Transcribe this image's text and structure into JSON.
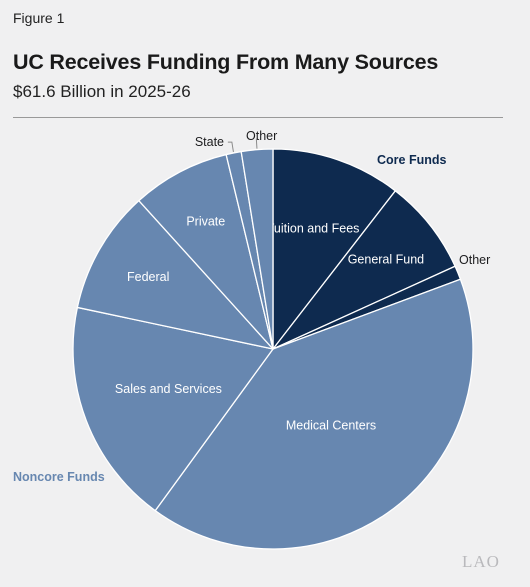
{
  "figure_label": "Figure 1",
  "chart_data": {
    "type": "pie",
    "title": "UC Receives Funding From Many Sources",
    "subtitle": "$61.6 Billion in 2025-26",
    "slices": [
      {
        "label": "Tuition and Fees",
        "value": 10.3,
        "group": "Core Funds"
      },
      {
        "label": "General Fund",
        "value": 7.6,
        "group": "Core Funds"
      },
      {
        "label": "Other",
        "value": 1.1,
        "group": "Core Funds"
      },
      {
        "label": "Medical Centers",
        "value": 40.0,
        "group": "Noncore Funds"
      },
      {
        "label": "Sales and Services",
        "value": 18.0,
        "group": "Noncore Funds"
      },
      {
        "label": "Federal",
        "value": 9.8,
        "group": "Noncore Funds"
      },
      {
        "label": "Private",
        "value": 7.8,
        "group": "Noncore Funds"
      },
      {
        "label": "State",
        "value": 1.2,
        "group": "Noncore Funds"
      },
      {
        "label": "Other",
        "value": 2.5,
        "group": "Noncore Funds"
      }
    ],
    "groups": [
      {
        "name": "Core Funds",
        "color": "#0e2a4f"
      },
      {
        "name": "Noncore Funds",
        "color": "#6787b0"
      }
    ]
  },
  "logo_text": "LAO"
}
